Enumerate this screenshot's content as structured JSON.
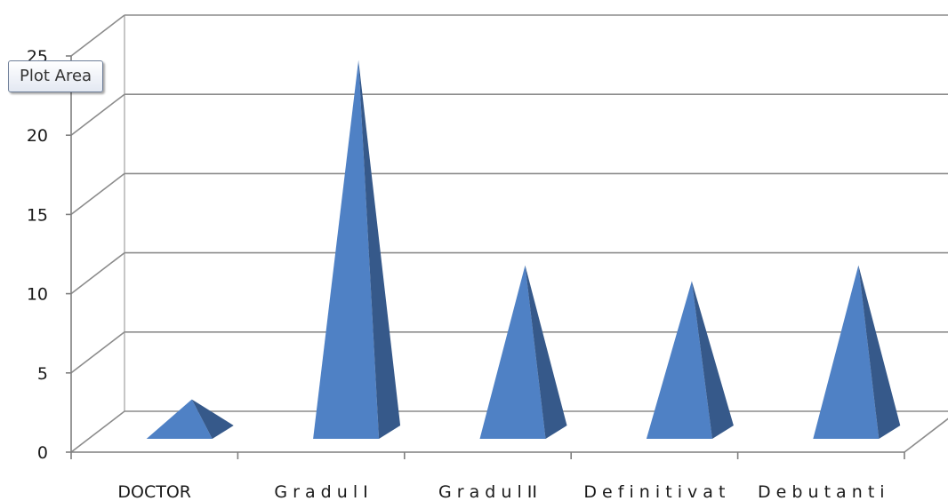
{
  "chart_data": {
    "type": "bar",
    "shape": "3d-pyramid",
    "categories": [
      "DOCTOR",
      "G r a d u l  I",
      "G r a d u l  II",
      "D e f i n i t i v a t",
      "D e b u t a n t i"
    ],
    "values": [
      2.5,
      24,
      11,
      10,
      11
    ],
    "ylim": [
      0,
      25
    ],
    "yticks": [
      0,
      5,
      10,
      15,
      20,
      25
    ],
    "title": "",
    "xlabel": "",
    "ylabel": "",
    "grid": true,
    "legend": "none",
    "colors": {
      "front": "#4f81c5",
      "side": "#36598a",
      "grid": "#8c8c8c",
      "axis": "#7f7f7f"
    }
  },
  "tooltip": {
    "text": "Plot Area"
  }
}
